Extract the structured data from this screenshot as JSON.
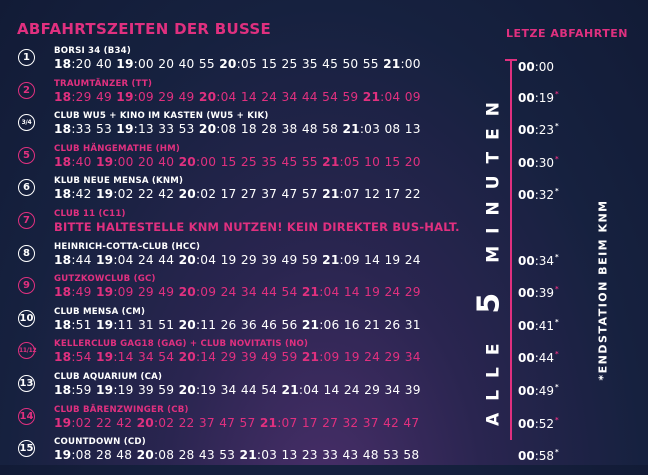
{
  "header": "ABFAHRTSZEITEN DER BUSSE",
  "last_departures_title": "LETZE ABFAHRTEN",
  "interval_text_prefix": "ALLE",
  "interval_number": "5",
  "interval_text_suffix": "MINUTEN",
  "endstation_note": "*ENDSTATION BEIM KNM",
  "colors": {
    "accent": "#e0307f",
    "text": "#ffffff",
    "background": "#16213f"
  },
  "routes": [
    {
      "badge": "1",
      "name": "BORSI 34 (B34)",
      "color": "white",
      "times": [
        "18:20",
        "40",
        "19:00",
        "20",
        "40",
        "55",
        "20:05",
        "15",
        "25",
        "35",
        "45",
        "50",
        "55",
        "21:00"
      ]
    },
    {
      "badge": "2",
      "name": "TRAUMTÄNZER (TT)",
      "color": "pink",
      "times": [
        "18:29",
        "49",
        "19:09",
        "29",
        "49",
        "20:04",
        "14",
        "24",
        "34",
        "44",
        "54",
        "59",
        "21:04",
        "09"
      ]
    },
    {
      "badge": "3/4",
      "name": "CLUB WU5 + KINO IM KASTEN (WU5 + KIK)",
      "color": "white",
      "times": [
        "18:33",
        "53",
        "19:13",
        "33",
        "53",
        "20:08",
        "18",
        "28",
        "38",
        "48",
        "58",
        "21:03",
        "08",
        "13"
      ]
    },
    {
      "badge": "5",
      "name": "CLUB HÄNGEMATHE (HM)",
      "color": "pink",
      "times": [
        "18:40",
        "19:00",
        "20",
        "40",
        "20:00",
        "15",
        "25",
        "35",
        "45",
        "55",
        "21:05",
        "10",
        "15",
        "20"
      ]
    },
    {
      "badge": "6",
      "name": "KLUB NEUE MENSA (KNM)",
      "color": "white",
      "times": [
        "18:42",
        "19:02",
        "22",
        "42",
        "20:02",
        "17",
        "27",
        "37",
        "47",
        "57",
        "21:07",
        "12",
        "17",
        "22"
      ]
    },
    {
      "badge": "7",
      "name": "CLUB 11 (C11)",
      "color": "pink",
      "notice": "BITTE HALTESTELLE KNM NUTZEN! KEIN DIREKTER BUS-HALT."
    },
    {
      "badge": "8",
      "name": "HEINRICH-COTTA-CLUB (HCC)",
      "color": "white",
      "times": [
        "18:44",
        "19:04",
        "24",
        "44",
        "20:04",
        "19",
        "29",
        "39",
        "49",
        "59",
        "21:09",
        "14",
        "19",
        "24"
      ]
    },
    {
      "badge": "9",
      "name": "GUTZKOWCLUB (GC)",
      "color": "pink",
      "times": [
        "18:49",
        "19:09",
        "29",
        "49",
        "20:09",
        "24",
        "34",
        "44",
        "54",
        "21:04",
        "14",
        "19",
        "24",
        "29"
      ]
    },
    {
      "badge": "10",
      "name": "CLUB MENSA (CM)",
      "color": "white",
      "times": [
        "18:51",
        "19:11",
        "31",
        "51",
        "20:11",
        "26",
        "36",
        "46",
        "56",
        "21:06",
        "16",
        "21",
        "26",
        "31"
      ]
    },
    {
      "badge": "11/12",
      "name": "KELLERCLUB GAG18 (GAG) + CLUB NOVITATIS (NO)",
      "color": "pink",
      "times": [
        "18:54",
        "19:14",
        "34",
        "54",
        "20:14",
        "29",
        "39",
        "49",
        "59",
        "21:09",
        "19",
        "24",
        "29",
        "34"
      ]
    },
    {
      "badge": "13",
      "name": "CLUB AQUARIUM (CA)",
      "color": "white",
      "times": [
        "18:59",
        "19:19",
        "39",
        "59",
        "20:19",
        "34",
        "44",
        "54",
        "21:04",
        "14",
        "24",
        "29",
        "34",
        "39"
      ]
    },
    {
      "badge": "14",
      "name": "CLUB BÄRENZWINGER (CB)",
      "color": "pink",
      "times": [
        "19:02",
        "22",
        "42",
        "20:02",
        "22",
        "37",
        "47",
        "57",
        "21:07",
        "17",
        "27",
        "32",
        "37",
        "42",
        "47"
      ]
    },
    {
      "badge": "15",
      "name": "COUNTDOWN (CD)",
      "color": "white",
      "times": [
        "19:08",
        "28",
        "48",
        "20:08",
        "28",
        "43",
        "53",
        "21:03",
        "13",
        "23",
        "33",
        "43",
        "48",
        "53",
        "58"
      ]
    }
  ],
  "last_departures": [
    {
      "hour": "00",
      "min": ":00",
      "mark": "",
      "color": "white"
    },
    {
      "hour": "00",
      "min": ":19",
      "mark": "*",
      "color": "pink"
    },
    {
      "hour": "00",
      "min": ":23",
      "mark": "*",
      "color": "white"
    },
    {
      "hour": "00",
      "min": ":30",
      "mark": "*",
      "color": "pink"
    },
    {
      "hour": "00",
      "min": ":32",
      "mark": "*",
      "color": "white"
    },
    {
      "hour": "00",
      "min": ":34",
      "mark": "*",
      "color": "white"
    },
    {
      "hour": "00",
      "min": ":39",
      "mark": "*",
      "color": "pink"
    },
    {
      "hour": "00",
      "min": ":41",
      "mark": "*",
      "color": "white"
    },
    {
      "hour": "00",
      "min": ":44",
      "mark": "*",
      "color": "pink"
    },
    {
      "hour": "00",
      "min": ":49",
      "mark": "*",
      "color": "white"
    },
    {
      "hour": "00",
      "min": ":52",
      "mark": "*",
      "color": "pink"
    },
    {
      "hour": "00",
      "min": ":58",
      "mark": "*",
      "color": "white"
    }
  ]
}
